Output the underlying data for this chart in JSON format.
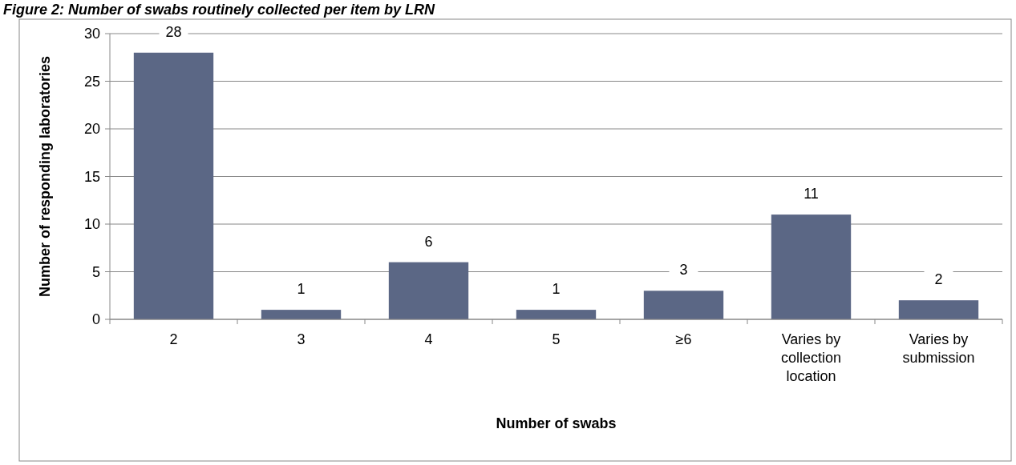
{
  "chart_data": {
    "type": "bar",
    "title": "Figure 2: Number of swabs routinely collected per item by LRN",
    "xlabel": "Number of swabs",
    "ylabel": "Number of responding laboratories",
    "categories": [
      "2",
      "3",
      "4",
      "5",
      "≥6",
      "Varies by collection location",
      "Varies by submission"
    ],
    "values": [
      28,
      1,
      6,
      1,
      3,
      11,
      2
    ],
    "color": "#5b6785",
    "ylim": [
      0,
      30
    ],
    "yticks": [
      0,
      5,
      10,
      15,
      20,
      25,
      30
    ],
    "grid": "y",
    "data_labels": true
  }
}
